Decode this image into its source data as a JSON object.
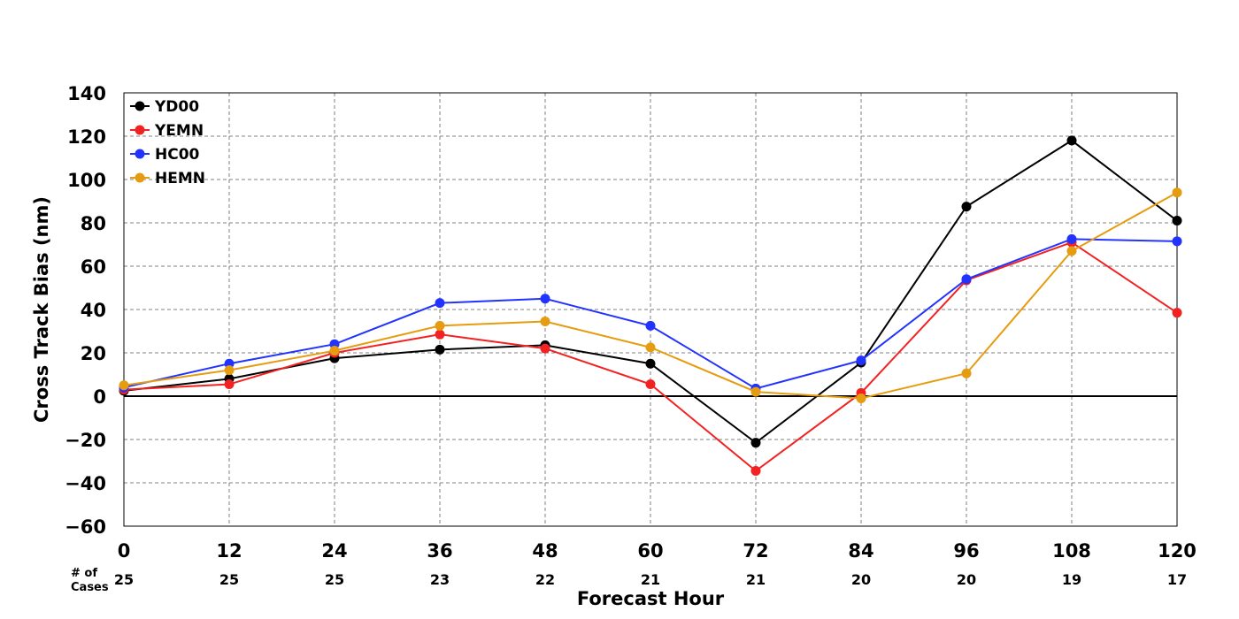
{
  "chart_data": {
    "type": "line",
    "title": "",
    "xlabel": "Forecast Hour",
    "ylabel": "Cross Track Bias (nm)",
    "x": [
      0,
      12,
      24,
      36,
      48,
      60,
      72,
      84,
      96,
      108,
      120
    ],
    "x_tick_labels": [
      "0",
      "12",
      "24",
      "36",
      "48",
      "60",
      "72",
      "84",
      "96",
      "108",
      "120"
    ],
    "xlim": [
      0,
      120
    ],
    "ylim": [
      -60,
      140
    ],
    "y_ticks": [
      -60,
      -40,
      -20,
      0,
      20,
      40,
      60,
      80,
      100,
      120,
      140
    ],
    "y_tick_labels": [
      "−60",
      "−40",
      "−20",
      "0",
      "20",
      "40",
      "60",
      "80",
      "100",
      "120",
      "140"
    ],
    "grid": true,
    "legend_position": "top-left",
    "cases_label_line1": "# of",
    "cases_label_line2": "Cases",
    "num_cases": [
      "25",
      "25",
      "25",
      "23",
      "22",
      "21",
      "21",
      "20",
      "20",
      "19",
      "17"
    ],
    "series": [
      {
        "name": "YD00",
        "color": "#000000",
        "values": [
          2.5,
          8,
          17.5,
          21.5,
          23.5,
          15,
          -21.5,
          15.5,
          87.5,
          118,
          81
        ]
      },
      {
        "name": "YEMN",
        "color": "#f22222",
        "values": [
          3,
          5.5,
          20,
          28.5,
          22,
          5.5,
          -34.5,
          1.5,
          53.5,
          71,
          38.5
        ]
      },
      {
        "name": "HC00",
        "color": "#2233ff",
        "values": [
          4,
          15,
          24,
          43,
          45,
          32.5,
          3.5,
          16.5,
          54,
          72.5,
          71.5
        ]
      },
      {
        "name": "HEMN",
        "color": "#e69c10",
        "values": [
          5,
          12,
          21,
          32.5,
          34.5,
          22.5,
          2,
          -1,
          10.5,
          67,
          94
        ]
      }
    ]
  }
}
